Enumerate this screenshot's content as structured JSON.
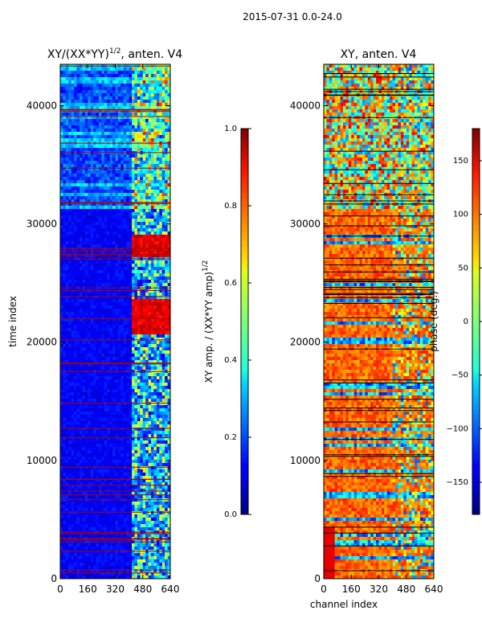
{
  "chart_data": [
    {
      "type": "heatmap",
      "suptitle": "2015-07-31 0.0-24.0",
      "title": "XY/(XX*YY)",
      "title_superscript": "1/2",
      "title_suffix": ", anten. V4",
      "xlabel": "",
      "ylabel": "time index",
      "xlim": [
        0,
        640
      ],
      "ylim": [
        0,
        43500
      ],
      "xticks": [
        "0",
        "160",
        "320",
        "480",
        "640"
      ],
      "xtick_values": [
        0,
        160,
        320,
        480,
        640
      ],
      "yticks": [
        "0",
        "10000",
        "20000",
        "30000",
        "40000"
      ],
      "ytick_values": [
        0,
        10000,
        20000,
        30000,
        40000
      ],
      "colormap": "jet",
      "colorbar": {
        "label": "XY amp. / (XX*YY amp)",
        "label_superscript": "1/2",
        "range": [
          0.0,
          1.0
        ],
        "ticks": [
          "0.0",
          "0.2",
          "0.4",
          "0.6",
          "0.8",
          "1.0"
        ],
        "tick_values": [
          0.0,
          0.2,
          0.4,
          0.6,
          0.8,
          1.0
        ]
      }
    },
    {
      "type": "heatmap",
      "title": "XY, anten. V4",
      "xlabel": "channel index",
      "ylabel": "",
      "xlim": [
        0,
        640
      ],
      "ylim": [
        0,
        43500
      ],
      "xticks": [
        "0",
        "160",
        "320",
        "480",
        "640"
      ],
      "xtick_values": [
        0,
        160,
        320,
        480,
        640
      ],
      "yticks": [
        "0",
        "10000",
        "20000",
        "30000",
        "40000"
      ],
      "ytick_values": [
        0,
        10000,
        20000,
        30000,
        40000
      ],
      "colormap": "jet",
      "colorbar": {
        "label": "phase (deg.)",
        "range": [
          -180,
          180
        ],
        "ticks": [
          "−150",
          "−100",
          "−50",
          "0",
          "50",
          "100",
          "150"
        ],
        "tick_values": [
          -150,
          -100,
          -50,
          0,
          50,
          100,
          150
        ]
      }
    }
  ]
}
